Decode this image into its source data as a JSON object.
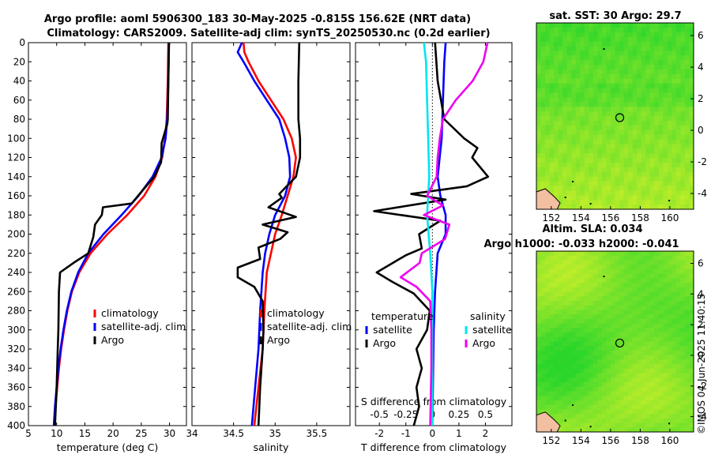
{
  "header": {
    "title_line1": "Argo profile: aoml 5906300_183 30-May-2025 -0.815S 156.62E (NRT data)",
    "title_line2": "Climatology: CARS2009. Satellite-adj clim: synTS_20250530.nc (0.2d earlier)"
  },
  "colors": {
    "climatology": "#ff0000",
    "satellite": "#0000ff",
    "argo": "#000000",
    "salinity_satellite": "#00e5ee",
    "salinity_argo": "#ee00ee",
    "map_green": "#2bd62b",
    "map_yellow": "#c8ef2a",
    "land": "#f2bfa0"
  },
  "chart_data": [
    {
      "id": "temperature",
      "type": "line",
      "xlabel": "temperature (deg C)",
      "ylabel": "",
      "xlim": [
        5,
        33
      ],
      "ylim": [
        400,
        0
      ],
      "xticks": [
        "5",
        "10",
        "15",
        "20",
        "25",
        "30"
      ],
      "xtick_values": [
        5,
        10,
        15,
        20,
        25,
        30
      ],
      "yticks": [
        "0",
        "20",
        "40",
        "60",
        "80",
        "100",
        "120",
        "140",
        "160",
        "180",
        "200",
        "220",
        "240",
        "260",
        "280",
        "300",
        "320",
        "340",
        "360",
        "380",
        "400"
      ],
      "ytick_values": [
        0,
        20,
        40,
        60,
        80,
        100,
        120,
        140,
        160,
        180,
        200,
        220,
        240,
        260,
        280,
        300,
        320,
        340,
        360,
        380,
        400
      ],
      "legend": [
        "climatology",
        "satellite-adj. clim",
        "Argo"
      ],
      "series": [
        {
          "name": "climatology",
          "color": "#ff0000",
          "points": [
            [
              29.8,
              0
            ],
            [
              29.7,
              40
            ],
            [
              29.5,
              80
            ],
            [
              29.2,
              100
            ],
            [
              28.7,
              120
            ],
            [
              27.5,
              140
            ],
            [
              25.5,
              160
            ],
            [
              22.5,
              180
            ],
            [
              19.0,
              200
            ],
            [
              16.0,
              220
            ],
            [
              14.0,
              240
            ],
            [
              12.7,
              260
            ],
            [
              11.9,
              280
            ],
            [
              11.3,
              300
            ],
            [
              10.8,
              320
            ],
            [
              10.4,
              340
            ],
            [
              10.1,
              360
            ],
            [
              9.8,
              380
            ],
            [
              9.6,
              400
            ]
          ]
        },
        {
          "name": "satellite-adj. clim",
          "color": "#0000ff",
          "points": [
            [
              29.9,
              0
            ],
            [
              29.8,
              40
            ],
            [
              29.6,
              80
            ],
            [
              29.3,
              100
            ],
            [
              28.6,
              120
            ],
            [
              27.0,
              140
            ],
            [
              24.5,
              160
            ],
            [
              21.5,
              180
            ],
            [
              18.3,
              200
            ],
            [
              15.6,
              220
            ],
            [
              13.8,
              240
            ],
            [
              12.6,
              260
            ],
            [
              11.8,
              280
            ],
            [
              11.2,
              300
            ],
            [
              10.7,
              320
            ],
            [
              10.3,
              340
            ],
            [
              10.0,
              360
            ],
            [
              9.7,
              380
            ],
            [
              9.5,
              400
            ]
          ]
        },
        {
          "name": "Argo",
          "color": "#000000",
          "points": [
            [
              29.9,
              0
            ],
            [
              29.8,
              40
            ],
            [
              29.7,
              80
            ],
            [
              29.6,
              85
            ],
            [
              28.6,
              105
            ],
            [
              28.5,
              125
            ],
            [
              27.3,
              140
            ],
            [
              24.7,
              158
            ],
            [
              23.3,
              168
            ],
            [
              18.2,
              172
            ],
            [
              18.0,
              180
            ],
            [
              16.8,
              190
            ],
            [
              16.5,
              203
            ],
            [
              15.6,
              220
            ],
            [
              13.0,
              230
            ],
            [
              10.6,
              240
            ],
            [
              10.4,
              260
            ],
            [
              10.3,
              300
            ],
            [
              10.2,
              320
            ],
            [
              10.0,
              360
            ],
            [
              9.7,
              400
            ]
          ]
        }
      ]
    },
    {
      "id": "salinity",
      "type": "line",
      "xlabel": "salinity",
      "ylabel": "",
      "xlim": [
        34,
        35.9
      ],
      "ylim": [
        400,
        0
      ],
      "xticks": [
        "34",
        "34.5",
        "35",
        "35.5"
      ],
      "xtick_values": [
        34,
        34.5,
        35,
        35.5
      ],
      "legend": [
        "climatology",
        "satellite-adj. clim",
        "Argo"
      ],
      "series": [
        {
          "name": "climatology",
          "color": "#ff0000",
          "points": [
            [
              34.62,
              0
            ],
            [
              34.63,
              10
            ],
            [
              34.68,
              20
            ],
            [
              34.8,
              40
            ],
            [
              34.95,
              60
            ],
            [
              35.1,
              80
            ],
            [
              35.2,
              100
            ],
            [
              35.25,
              120
            ],
            [
              35.22,
              140
            ],
            [
              35.15,
              160
            ],
            [
              35.08,
              180
            ],
            [
              35.0,
              200
            ],
            [
              34.95,
              220
            ],
            [
              34.9,
              240
            ],
            [
              34.87,
              280
            ],
            [
              34.85,
              320
            ],
            [
              34.8,
              360
            ],
            [
              34.75,
              400
            ]
          ]
        },
        {
          "name": "satellite-adj. clim",
          "color": "#0000ff",
          "points": [
            [
              34.6,
              0
            ],
            [
              34.55,
              10
            ],
            [
              34.62,
              20
            ],
            [
              34.75,
              40
            ],
            [
              34.9,
              60
            ],
            [
              35.05,
              80
            ],
            [
              35.12,
              100
            ],
            [
              35.17,
              120
            ],
            [
              35.18,
              140
            ],
            [
              35.12,
              160
            ],
            [
              35.0,
              180
            ],
            [
              34.93,
              200
            ],
            [
              34.88,
              220
            ],
            [
              34.85,
              240
            ],
            [
              34.82,
              280
            ],
            [
              34.8,
              320
            ],
            [
              34.76,
              360
            ],
            [
              34.72,
              400
            ]
          ]
        },
        {
          "name": "Argo",
          "color": "#000000",
          "points": [
            [
              35.29,
              0
            ],
            [
              35.28,
              40
            ],
            [
              35.28,
              80
            ],
            [
              35.3,
              100
            ],
            [
              35.3,
              120
            ],
            [
              35.25,
              140
            ],
            [
              35.05,
              158
            ],
            [
              35.08,
              162
            ],
            [
              34.92,
              172
            ],
            [
              35.25,
              182
            ],
            [
              34.85,
              190
            ],
            [
              35.15,
              198
            ],
            [
              35.06,
              205
            ],
            [
              34.8,
              214
            ],
            [
              34.82,
              226
            ],
            [
              34.55,
              235
            ],
            [
              34.55,
              245
            ],
            [
              34.75,
              255
            ],
            [
              34.85,
              270
            ],
            [
              34.86,
              300
            ],
            [
              34.85,
              320
            ],
            [
              34.82,
              360
            ],
            [
              34.8,
              400
            ]
          ]
        }
      ]
    },
    {
      "id": "difference",
      "type": "line",
      "xlabel": "T difference from climatology",
      "xlabel_top": "S difference from climatology",
      "xlim": [
        -2.9,
        3.0
      ],
      "ylim": [
        400,
        0
      ],
      "xticks": [
        "-2",
        "-1",
        "0",
        "1",
        "2"
      ],
      "xtick_values": [
        -2,
        -1,
        0,
        1,
        2
      ],
      "sticks": [
        "-0.5",
        "-0.25",
        "0",
        "0.25",
        "0.5"
      ],
      "stick_values": [
        -0.5,
        -0.25,
        0,
        0.25,
        0.5
      ],
      "s_scale": 4,
      "legend_temperature_title": "temperature",
      "legend_salinity_title": "salinity",
      "legend_labels": [
        "satellite",
        "Argo",
        "satellite",
        "Argo"
      ],
      "series": [
        {
          "name": "temperature satellite",
          "color": "#0000ff",
          "units": "T",
          "points": [
            [
              0.5,
              0
            ],
            [
              0.45,
              20
            ],
            [
              0.4,
              60
            ],
            [
              0.35,
              100
            ],
            [
              0.2,
              140
            ],
            [
              0.3,
              160
            ],
            [
              0.5,
              180
            ],
            [
              0.5,
              200
            ],
            [
              0.2,
              220
            ],
            [
              0.1,
              260
            ],
            [
              0.05,
              300
            ],
            [
              0.0,
              400
            ]
          ]
        },
        {
          "name": "temperature Argo",
          "color": "#000000",
          "units": "T",
          "points": [
            [
              0.1,
              0
            ],
            [
              0.2,
              40
            ],
            [
              0.45,
              80
            ],
            [
              1.2,
              100
            ],
            [
              1.7,
              110
            ],
            [
              1.5,
              120
            ],
            [
              2.1,
              140
            ],
            [
              1.3,
              150
            ],
            [
              -0.8,
              158
            ],
            [
              0.5,
              164
            ],
            [
              -2.2,
              176
            ],
            [
              0.3,
              186
            ],
            [
              -0.5,
              200
            ],
            [
              -0.4,
              215
            ],
            [
              -1.0,
              222
            ],
            [
              -2.1,
              240
            ],
            [
              -1.5,
              250
            ],
            [
              -0.7,
              262
            ],
            [
              -0.1,
              280
            ],
            [
              -0.2,
              300
            ],
            [
              -0.6,
              320
            ],
            [
              -0.4,
              340
            ],
            [
              -0.6,
              360
            ],
            [
              -0.5,
              380
            ],
            [
              -0.7,
              400
            ]
          ]
        },
        {
          "name": "salinity satellite",
          "color": "#00e5ee",
          "units": "S",
          "points": [
            [
              -0.08,
              0
            ],
            [
              -0.06,
              20
            ],
            [
              -0.05,
              60
            ],
            [
              -0.04,
              100
            ],
            [
              -0.03,
              140
            ],
            [
              -0.05,
              180
            ],
            [
              -0.02,
              220
            ],
            [
              0.0,
              260
            ],
            [
              0.0,
              300
            ],
            [
              0.0,
              400
            ]
          ]
        },
        {
          "name": "salinity Argo",
          "color": "#ee00ee",
          "units": "S",
          "points": [
            [
              0.52,
              0
            ],
            [
              0.48,
              20
            ],
            [
              0.38,
              40
            ],
            [
              0.22,
              60
            ],
            [
              0.1,
              80
            ],
            [
              0.07,
              100
            ],
            [
              0.05,
              120
            ],
            [
              0.04,
              140
            ],
            [
              -0.05,
              160
            ],
            [
              0.1,
              170
            ],
            [
              -0.08,
              180
            ],
            [
              0.16,
              190
            ],
            [
              0.12,
              205
            ],
            [
              -0.1,
              220
            ],
            [
              -0.12,
              230
            ],
            [
              -0.3,
              245
            ],
            [
              -0.15,
              255
            ],
            [
              -0.02,
              270
            ],
            [
              -0.01,
              300
            ],
            [
              -0.01,
              340
            ],
            [
              -0.02,
              400
            ]
          ]
        }
      ]
    },
    {
      "id": "map_sst",
      "type": "heatmap",
      "title": "sat. SST: 30 Argo: 29.7",
      "xticks": [
        "152",
        "154",
        "156",
        "158",
        "160"
      ],
      "xtick_values": [
        152,
        154,
        156,
        158,
        160
      ],
      "yticks": [
        "-4",
        "-2",
        "0",
        "2",
        "4",
        "6"
      ],
      "ytick_values": [
        -4,
        -2,
        0,
        2,
        4,
        6
      ],
      "xlim": [
        151,
        161.6
      ],
      "ylim": [
        -5,
        6.8
      ],
      "argo_position": [
        156.62,
        0.8
      ]
    },
    {
      "id": "map_sla",
      "type": "heatmap",
      "title": "Altim. SLA: 0.034",
      "subtitle": "Argo h1000: -0.033 h2000: -0.041",
      "xticks": [
        "152",
        "154",
        "156",
        "158",
        "160"
      ],
      "xtick_values": [
        152,
        154,
        156,
        158,
        160
      ],
      "yticks": [
        "-4",
        "-2",
        "0",
        "2",
        "4",
        "6"
      ],
      "ytick_values": [
        -4,
        -2,
        0,
        2,
        4,
        6
      ],
      "xlim": [
        151,
        161.6
      ],
      "ylim": [
        -5,
        6.8
      ],
      "argo_position": [
        156.62,
        0.8
      ]
    }
  ],
  "footer": {
    "credit": "©IMOS 04-Jun-2025 11:40:15"
  }
}
